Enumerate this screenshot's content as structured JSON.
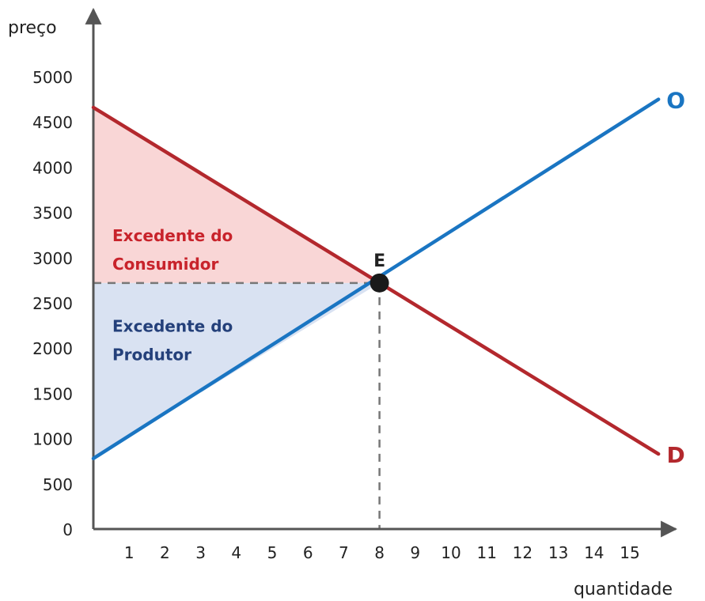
{
  "chart_data": {
    "type": "line",
    "x_axis": {
      "label": "quantidade",
      "ticks": [
        1,
        2,
        3,
        4,
        5,
        6,
        7,
        8,
        9,
        10,
        11,
        12,
        13,
        14,
        15
      ],
      "range": [
        0,
        15.75
      ]
    },
    "y_axis": {
      "label": "preço",
      "ticks": [
        0,
        500,
        1000,
        1500,
        2000,
        2500,
        3000,
        3500,
        4000,
        4500,
        5000
      ],
      "range": [
        0,
        5350
      ]
    },
    "series": [
      {
        "name": "D",
        "color": "#b3282d",
        "points": [
          [
            0,
            4660
          ],
          [
            15.8,
            830
          ]
        ]
      },
      {
        "name": "O",
        "color": "#1a75c2",
        "points": [
          [
            0,
            780
          ],
          [
            15.8,
            4750
          ]
        ]
      }
    ],
    "equilibrium": {
      "label": "E",
      "x": 8,
      "y": 2720
    },
    "areas": [
      {
        "name": "Excedente do Consumidor",
        "lines": [
          "Excedente do",
          "Consumidor"
        ],
        "fill": "#f9d6d6",
        "text_color": "#c8232b",
        "polygon": [
          [
            0,
            4660
          ],
          [
            8,
            2720
          ],
          [
            0,
            2720
          ]
        ]
      },
      {
        "name": "Excedente do Produtor",
        "lines": [
          "Excedente do",
          "Produtor"
        ],
        "fill": "#d9e2f2",
        "text_color": "#24407a",
        "polygon": [
          [
            0,
            780
          ],
          [
            8,
            2720
          ],
          [
            0,
            2720
          ]
        ]
      }
    ],
    "grid": false,
    "legend": "none"
  }
}
